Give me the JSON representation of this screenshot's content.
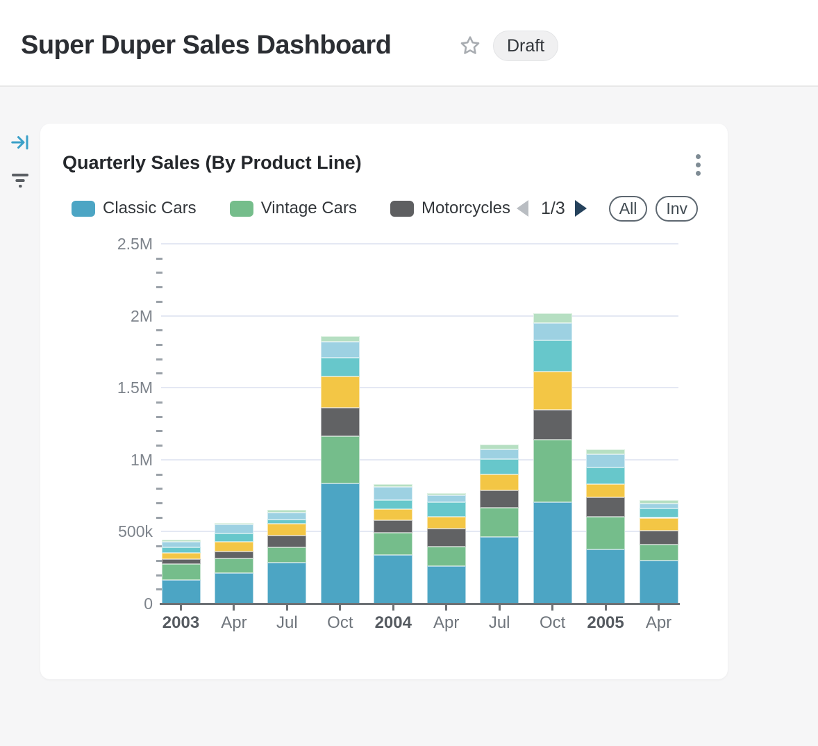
{
  "header": {
    "title": "Super Duper Sales Dashboard",
    "badge": "Draft",
    "star_icon": "star-outline",
    "star_color": "#a8acb1"
  },
  "rail": {
    "icons": [
      {
        "name": "collapse-panel-icon",
        "color": "#3aa0c8"
      },
      {
        "name": "filter-icon",
        "color": "#5a5e63"
      }
    ]
  },
  "card": {
    "title": "Quarterly Sales (By Product Line)",
    "menu_icon": "kebab-menu",
    "legend": {
      "items": [
        {
          "label": "Classic Cars",
          "color": "#4ca5c4"
        },
        {
          "label": "Vintage Cars",
          "color": "#75bd8b"
        },
        {
          "label": "Motorcycles",
          "color": "#5e5f61"
        }
      ],
      "pagination": {
        "label": "1/3",
        "prev_enabled": false,
        "next_enabled": true,
        "prev_color": "#b9bdc2",
        "next_color": "#25425c"
      },
      "buttons": [
        {
          "label": "All"
        },
        {
          "label": "Inv"
        }
      ]
    },
    "chart_data": {
      "type": "bar",
      "stacked": true,
      "title": "Quarterly Sales (By Product Line)",
      "xlabel": "",
      "ylabel": "",
      "ylim": [
        0,
        2500000
      ],
      "grid": true,
      "legend_position": "top",
      "categories": [
        "2003",
        "Apr",
        "Jul",
        "Oct",
        "2004",
        "Apr",
        "Jul",
        "Oct",
        "2005",
        "Apr"
      ],
      "category_bold": [
        true,
        false,
        false,
        false,
        true,
        false,
        false,
        false,
        true,
        false
      ],
      "y_ticks": [
        {
          "value": 0,
          "label": "0"
        },
        {
          "value": 500000,
          "label": "500k"
        },
        {
          "value": 1000000,
          "label": "1M"
        },
        {
          "value": 1500000,
          "label": "1.5M"
        },
        {
          "value": 2000000,
          "label": "2M"
        },
        {
          "value": 2500000,
          "label": "2.5M"
        }
      ],
      "minor_tick_step": 100000,
      "series": [
        {
          "name": "Classic Cars",
          "color": "#4ca5c4",
          "values": [
            165000,
            210000,
            286000,
            833000,
            336000,
            261000,
            464000,
            703000,
            376000,
            300000
          ]
        },
        {
          "name": "Vintage Cars",
          "color": "#75bd8b",
          "values": [
            110000,
            103000,
            106000,
            331000,
            156000,
            134000,
            200000,
            437000,
            229000,
            109000
          ]
        },
        {
          "name": "Motorcycles",
          "color": "#616264",
          "values": [
            36000,
            48000,
            83000,
            197000,
            88000,
            128000,
            123000,
            208000,
            134000,
            99000
          ]
        },
        {
          "name": "unlabeled-yellow (legend page 2)",
          "color": "#f3c645",
          "values": [
            40000,
            67000,
            82000,
            216000,
            75000,
            80000,
            112000,
            264000,
            91000,
            88000
          ]
        },
        {
          "name": "unlabeled-teal (legend page 2)",
          "color": "#67c7cb",
          "values": [
            40000,
            60000,
            29000,
            131000,
            64000,
            101000,
            104000,
            216000,
            118000,
            64000
          ]
        },
        {
          "name": "unlabeled-lightblue (legend page 2)",
          "color": "#9dd1e2",
          "values": [
            40000,
            60000,
            48000,
            112000,
            91000,
            48000,
            69000,
            123000,
            91000,
            34000
          ]
        },
        {
          "name": "unlabeled-mint (legend page 3)",
          "color": "#b6dfc2",
          "values": [
            13000,
            14000,
            16000,
            36000,
            21000,
            16000,
            35000,
            66000,
            32000,
            24000
          ]
        }
      ]
    }
  }
}
